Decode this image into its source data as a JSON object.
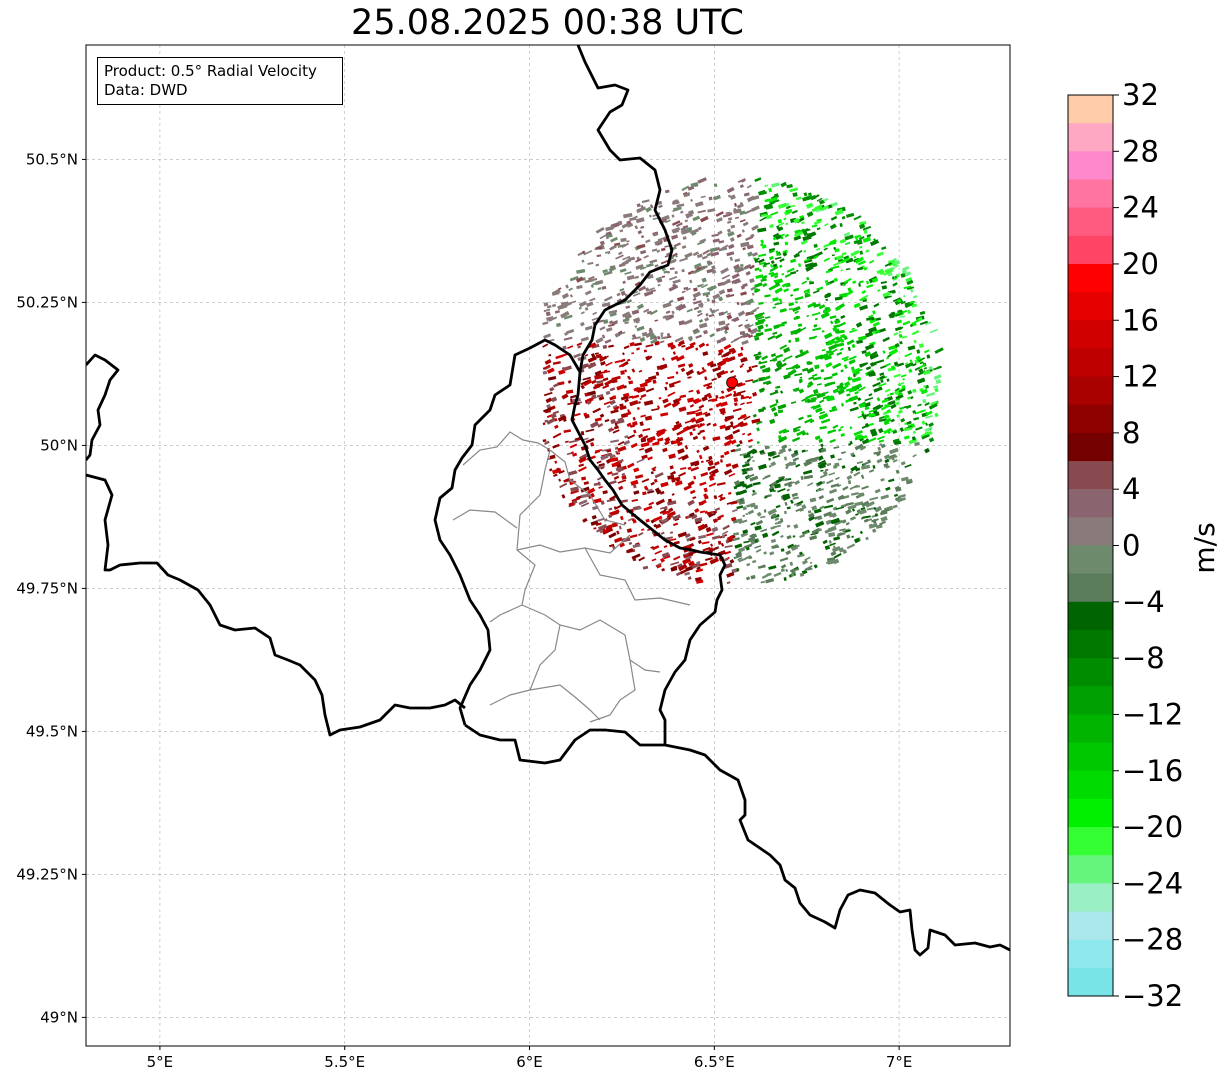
{
  "title": "25.08.2025 00:38 UTC",
  "info": {
    "product": "Product: 0.5° Radial Velocity",
    "source": "Data: DWD"
  },
  "map": {
    "lon_range": [
      4.8,
      7.3
    ],
    "lat_range": [
      48.95,
      50.7
    ],
    "x_ticks": [
      {
        "value": 5.0,
        "label": "5°E"
      },
      {
        "value": 5.5,
        "label": "5.5°E"
      },
      {
        "value": 6.0,
        "label": "6°E"
      },
      {
        "value": 6.5,
        "label": "6.5°E"
      },
      {
        "value": 7.0,
        "label": "7°E"
      }
    ],
    "y_ticks": [
      {
        "value": 49.0,
        "label": "49°N"
      },
      {
        "value": 49.25,
        "label": "49.25°N"
      },
      {
        "value": 49.5,
        "label": "49.5°N"
      },
      {
        "value": 49.75,
        "label": "49.75°N"
      },
      {
        "value": 50.0,
        "label": "50°N"
      },
      {
        "value": 50.25,
        "label": "50.25°N"
      },
      {
        "value": 50.5,
        "label": "50.5°N"
      }
    ],
    "grid": true,
    "radar_site": {
      "lon": 6.548,
      "lat": 50.11,
      "color": "#ff0000"
    }
  },
  "colorbar": {
    "unit": "m/s",
    "vmin": -32,
    "vmax": 32,
    "step": 2,
    "tick_labels": [
      "32",
      "28",
      "24",
      "20",
      "16",
      "12",
      "8",
      "4",
      "0",
      "−4",
      "−8",
      "−12",
      "−16",
      "−20",
      "−24",
      "−28",
      "−32"
    ],
    "colors_top_to_bottom": [
      "#ffcba8",
      "#ffa8c4",
      "#ff88cc",
      "#ff74a0",
      "#ff5a80",
      "#ff4466",
      "#ff0000",
      "#e60000",
      "#d00000",
      "#bf0000",
      "#a90000",
      "#8f0000",
      "#740000",
      "#884a4f",
      "#8a6570",
      "#8a7b7b",
      "#6d8a6d",
      "#5b7c5b",
      "#006400",
      "#007800",
      "#008c00",
      "#00a000",
      "#00b400",
      "#00c800",
      "#00dc00",
      "#00f000",
      "#33ff33",
      "#66f57c",
      "#9af0c4",
      "#abe8ec",
      "#8ee8ec",
      "#78e4e8"
    ]
  }
}
